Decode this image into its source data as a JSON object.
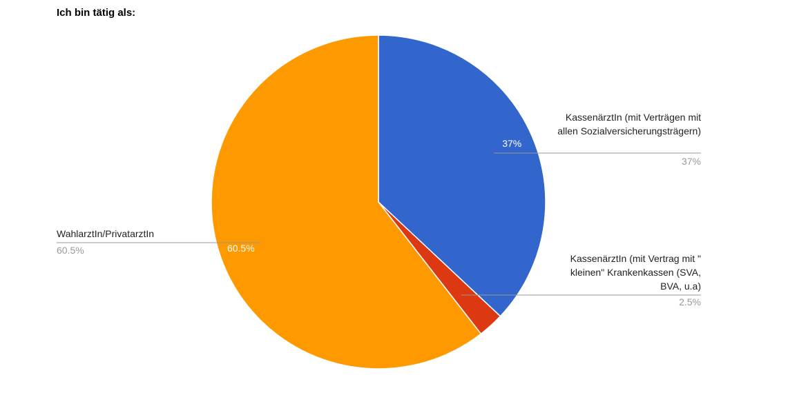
{
  "chart_data": {
    "type": "pie",
    "title": "Ich bin tätig als:",
    "categories": [
      "KassenärztIn (mit Verträgen mit allen Sozialversicherungsträgern)",
      "KassenärztIn (mit Vertrag mit \" kleinen\" Krankenkassen (SVA, BVA, u.a)",
      "WahlarztIn/PrivatarztIn"
    ],
    "values": [
      37,
      2.5,
      60.5
    ],
    "value_labels": [
      "37%",
      "2.5%",
      "60.5%"
    ],
    "colors": [
      "#3366cc",
      "#dc3912",
      "#ff9900"
    ]
  }
}
